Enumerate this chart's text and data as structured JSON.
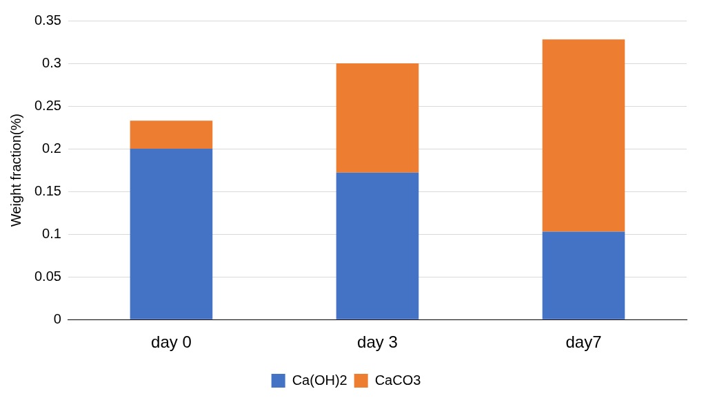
{
  "chart_data": {
    "type": "bar",
    "ylabel": "Weight fraction(%)",
    "categories": [
      "day 0",
      "day 3",
      "day7"
    ],
    "stacked": true,
    "series": [
      {
        "name": "Ca(OH)2",
        "color": "#4472c4",
        "values": [
          0.2,
          0.172,
          0.103
        ]
      },
      {
        "name": "CaCO3",
        "color": "#ed7d31",
        "values": [
          0.033,
          0.128,
          0.225
        ]
      }
    ],
    "ylim": [
      0,
      0.35
    ],
    "yticks": [
      0,
      0.05,
      0.1,
      0.15,
      0.2,
      0.25,
      0.3,
      0.35
    ],
    "grid": "y",
    "legend": "bottom"
  }
}
